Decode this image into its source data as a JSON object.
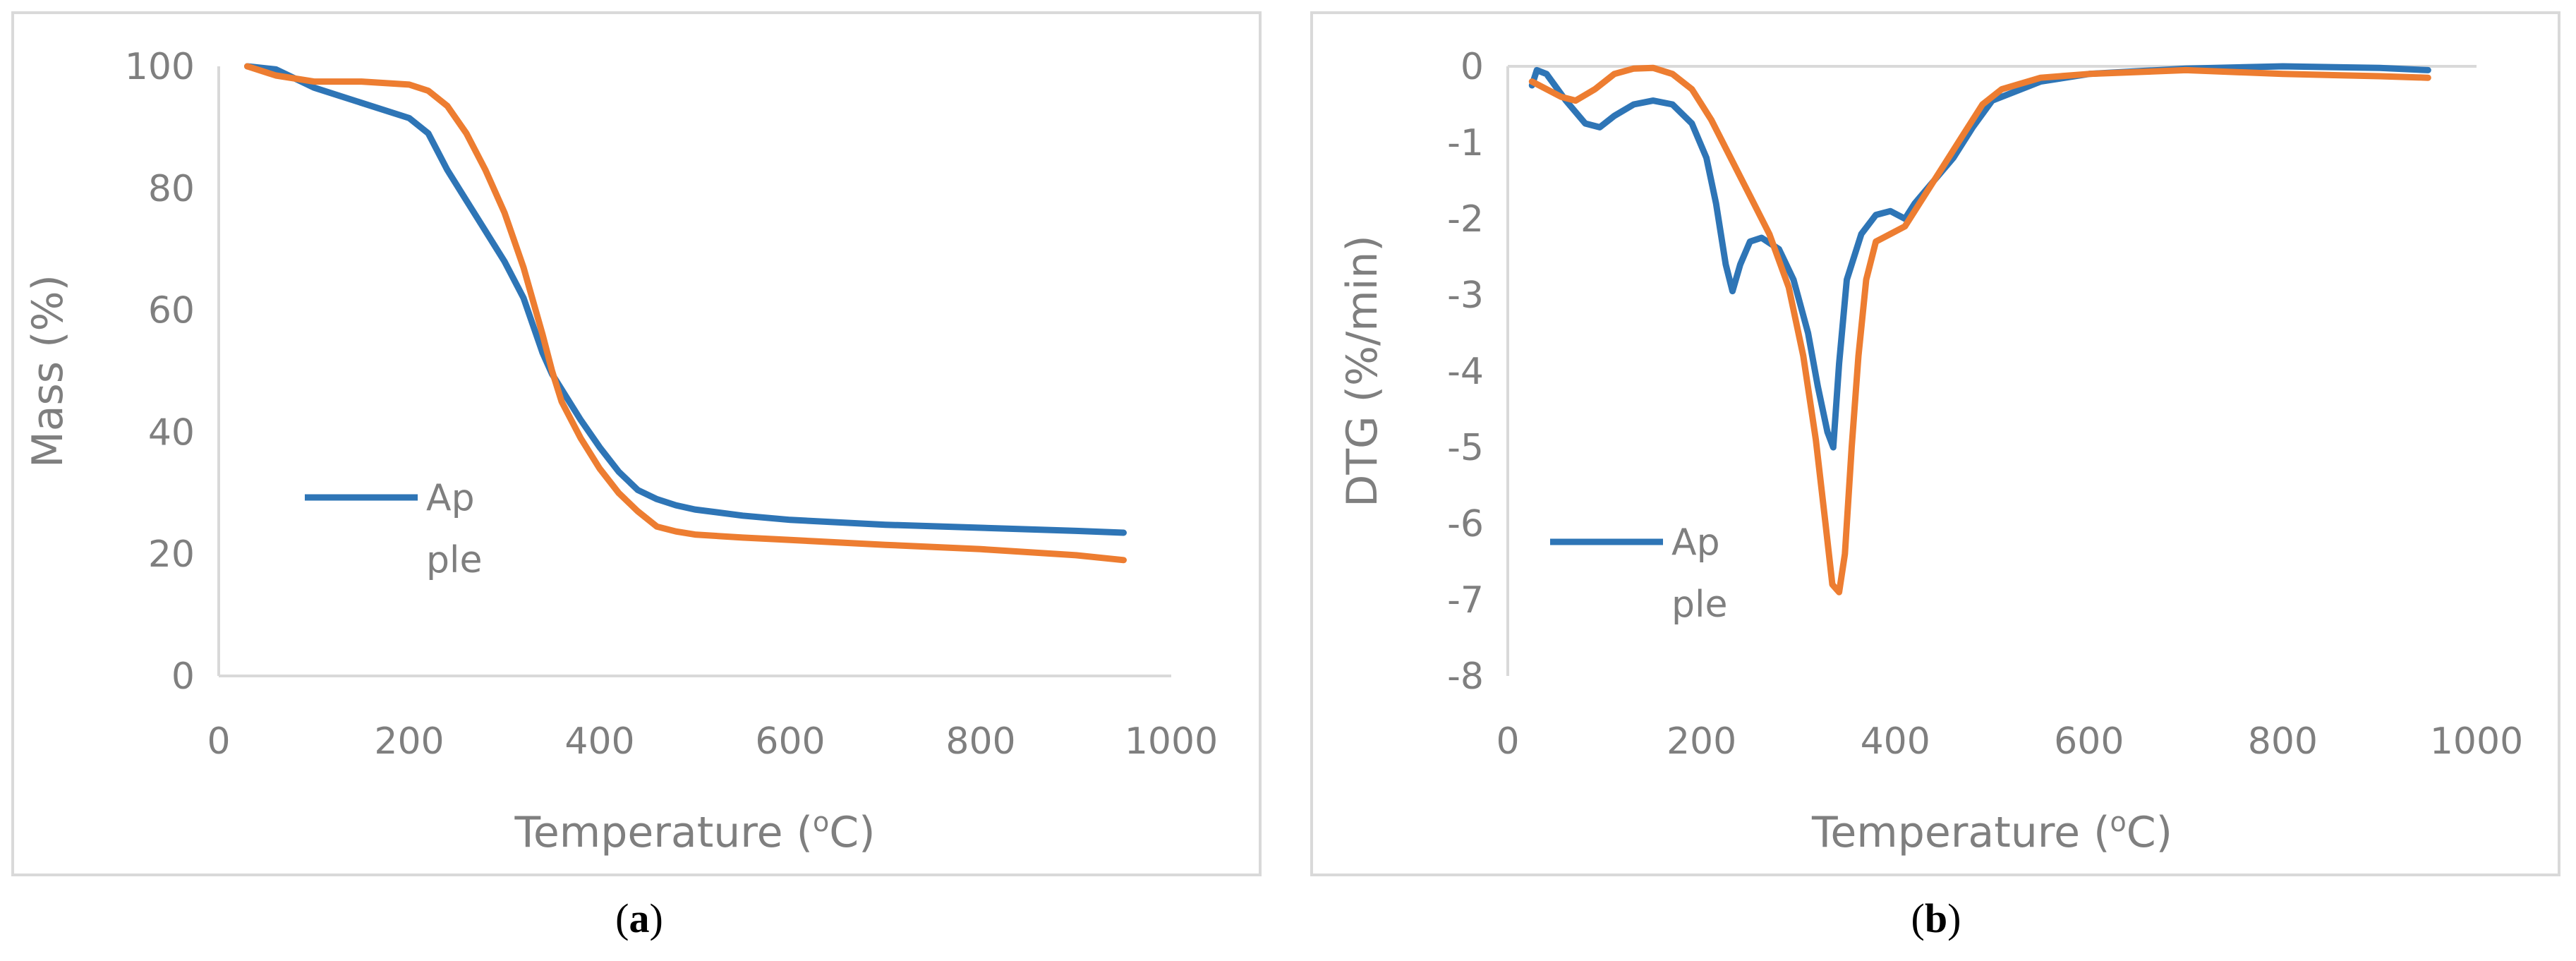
{
  "colors": {
    "series1": "#2e75b6",
    "series2": "#ed7d31",
    "axis": "#d9d9d9",
    "text": "#7f7f7f"
  },
  "captions": {
    "a_open": "(",
    "a_letter": "a",
    "a_close": ")",
    "b_open": "(",
    "b_letter": "b",
    "b_close": ")"
  },
  "chart_data": [
    {
      "type": "line",
      "xlabel": "Temperature (",
      "xlabel_sup": "o",
      "xlabel_end": "C)",
      "ylabel": "Mass (%)",
      "xlim": [
        0,
        1000
      ],
      "ylim": [
        0,
        100
      ],
      "xticks": [
        "0",
        "200",
        "400",
        "600",
        "800",
        "1000"
      ],
      "yticks": [
        "0",
        "20",
        "40",
        "60",
        "80",
        "100"
      ],
      "grid": false,
      "legend": {
        "placement": "left-middle",
        "line1": "Ap",
        "line2": "ple"
      },
      "series": [
        {
          "name": "Apple",
          "color": "#2e75b6",
          "x": [
            30,
            60,
            100,
            150,
            200,
            220,
            240,
            260,
            280,
            300,
            320,
            340,
            350,
            360,
            380,
            400,
            420,
            440,
            460,
            480,
            500,
            550,
            600,
            700,
            800,
            900,
            950
          ],
          "y": [
            100,
            99.5,
            96.5,
            94,
            91.5,
            89,
            83,
            78,
            73,
            68,
            62,
            53,
            49.5,
            47,
            42,
            37.5,
            33.5,
            30.5,
            29,
            28,
            27.3,
            26.3,
            25.6,
            24.8,
            24.3,
            23.8,
            23.5
          ]
        },
        {
          "name": "",
          "color": "#ed7d31",
          "x": [
            30,
            60,
            100,
            150,
            200,
            220,
            240,
            260,
            280,
            300,
            320,
            340,
            350,
            360,
            380,
            400,
            420,
            440,
            460,
            480,
            500,
            550,
            600,
            700,
            800,
            900,
            950
          ],
          "y": [
            100,
            98.5,
            97.5,
            97.5,
            97,
            96,
            93.5,
            89,
            83,
            76,
            67,
            56,
            50,
            45,
            39,
            34,
            30,
            27,
            24.5,
            23.7,
            23.2,
            22.7,
            22.3,
            21.5,
            20.8,
            19.8,
            19
          ]
        }
      ]
    },
    {
      "type": "line",
      "xlabel": "Temperature (",
      "xlabel_sup": "o",
      "xlabel_end": "C)",
      "ylabel": "DTG (%/min)",
      "xlim": [
        0,
        1000
      ],
      "ylim": [
        -8,
        0
      ],
      "xticks": [
        "0",
        "200",
        "400",
        "600",
        "800",
        "1000"
      ],
      "yticks": [
        "0",
        "-1",
        "-2",
        "-3",
        "-4",
        "-5",
        "-6",
        "-7",
        "-8"
      ],
      "grid": false,
      "legend": {
        "placement": "bottom-left",
        "line1": "Ap",
        "line2": "ple"
      },
      "series": [
        {
          "name": "Apple",
          "color": "#2e75b6",
          "x": [
            25,
            30,
            40,
            60,
            80,
            95,
            110,
            130,
            150,
            170,
            190,
            205,
            215,
            225,
            232,
            240,
            250,
            262,
            280,
            295,
            310,
            320,
            330,
            336,
            342,
            350,
            365,
            380,
            395,
            410,
            420,
            440,
            460,
            480,
            500,
            550,
            600,
            700,
            800,
            900,
            950
          ],
          "y": [
            -0.25,
            -0.05,
            -0.1,
            -0.45,
            -0.75,
            -0.8,
            -0.65,
            -0.5,
            -0.45,
            -0.5,
            -0.75,
            -1.2,
            -1.8,
            -2.6,
            -2.95,
            -2.6,
            -2.3,
            -2.25,
            -2.4,
            -2.8,
            -3.5,
            -4.2,
            -4.8,
            -5.0,
            -3.9,
            -2.8,
            -2.2,
            -1.95,
            -1.9,
            -2.0,
            -1.8,
            -1.5,
            -1.2,
            -0.8,
            -0.45,
            -0.2,
            -0.1,
            -0.03,
            0,
            -0.02,
            -0.05
          ]
        },
        {
          "name": "",
          "color": "#ed7d31",
          "x": [
            25,
            40,
            55,
            70,
            90,
            110,
            130,
            150,
            170,
            190,
            210,
            230,
            250,
            270,
            290,
            305,
            318,
            328,
            335,
            342,
            348,
            355,
            362,
            370,
            380,
            395,
            410,
            430,
            450,
            470,
            490,
            510,
            550,
            600,
            700,
            800,
            900,
            950
          ],
          "y": [
            -0.2,
            -0.3,
            -0.4,
            -0.45,
            -0.3,
            -0.1,
            -0.03,
            -0.02,
            -0.1,
            -0.3,
            -0.7,
            -1.2,
            -1.7,
            -2.2,
            -2.9,
            -3.8,
            -4.9,
            -6.0,
            -6.8,
            -6.9,
            -6.4,
            -5.0,
            -3.8,
            -2.8,
            -2.3,
            -2.2,
            -2.1,
            -1.7,
            -1.3,
            -0.9,
            -0.5,
            -0.3,
            -0.15,
            -0.1,
            -0.05,
            -0.1,
            -0.13,
            -0.15
          ]
        }
      ]
    }
  ]
}
